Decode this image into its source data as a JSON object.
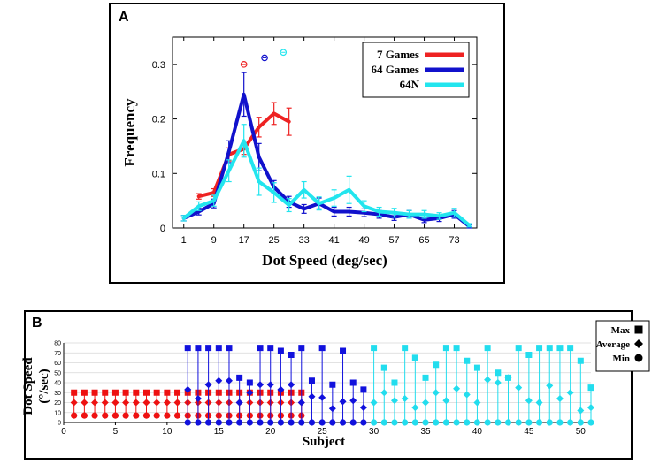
{
  "chart_data": [
    {
      "panel_label": "A",
      "type": "line",
      "title": "",
      "xlabel": "Dot Speed (deg/sec)",
      "ylabel": "Frequency",
      "xlim": [
        -2,
        79
      ],
      "ylim": [
        0,
        0.35
      ],
      "x_ticks": [
        1,
        9,
        17,
        25,
        33,
        41,
        49,
        57,
        65,
        73
      ],
      "y_ticks": [
        0,
        0.1,
        0.2,
        0.3
      ],
      "y_tick_labels": [
        "0",
        "0.1",
        "0.2",
        "0.3"
      ],
      "legend_position": "top-right",
      "series": [
        {
          "name": "7 Games",
          "color": "#ee2222",
          "x": [
            5,
            9,
            13,
            17,
            21,
            25,
            29
          ],
          "y": [
            0.058,
            0.065,
            0.135,
            0.145,
            0.185,
            0.21,
            0.195
          ],
          "err": [
            0.005,
            0.007,
            0.012,
            0.01,
            0.018,
            0.02,
            0.025
          ]
        },
        {
          "name": "64 Games",
          "color": "#1111cc",
          "x": [
            1,
            5,
            9,
            13,
            17,
            21,
            25,
            29,
            33,
            37,
            41,
            45,
            49,
            53,
            57,
            61,
            65,
            69,
            73,
            77
          ],
          "y": [
            0.018,
            0.03,
            0.045,
            0.14,
            0.245,
            0.13,
            0.075,
            0.048,
            0.035,
            0.045,
            0.03,
            0.03,
            0.028,
            0.025,
            0.02,
            0.025,
            0.015,
            0.018,
            0.025,
            0.003
          ],
          "err": [
            0.005,
            0.006,
            0.008,
            0.02,
            0.04,
            0.025,
            0.012,
            0.01,
            0.008,
            0.01,
            0.008,
            0.008,
            0.007,
            0.007,
            0.006,
            0.007,
            0.005,
            0.006,
            0.007,
            0.003
          ]
        },
        {
          "name": "64N",
          "color": "#22e5ee",
          "x": [
            1,
            5,
            9,
            13,
            17,
            21,
            25,
            29,
            33,
            37,
            41,
            45,
            49,
            53,
            57,
            61,
            65,
            69,
            73,
            77
          ],
          "y": [
            0.018,
            0.04,
            0.05,
            0.105,
            0.16,
            0.085,
            0.065,
            0.042,
            0.07,
            0.045,
            0.055,
            0.07,
            0.04,
            0.03,
            0.028,
            0.025,
            0.025,
            0.022,
            0.028,
            0.005
          ],
          "err": [
            0.005,
            0.008,
            0.01,
            0.02,
            0.03,
            0.025,
            0.018,
            0.012,
            0.015,
            0.012,
            0.015,
            0.025,
            0.01,
            0.008,
            0.008,
            0.007,
            0.007,
            0.006,
            0.008,
            0.003
          ]
        }
      ],
      "peak_markers": [
        {
          "series": "7 Games",
          "x": 17,
          "y": 0.3,
          "color": "#ee2222"
        },
        {
          "series": "64 Games",
          "x": 22.5,
          "y": 0.312,
          "color": "#1111cc"
        },
        {
          "series": "64N",
          "x": 27.5,
          "y": 0.322,
          "color": "#22e5ee"
        }
      ]
    },
    {
      "panel_label": "B",
      "type": "scatter",
      "title": "",
      "xlabel": "Subject",
      "ylabel_line1": "Dot Speed",
      "ylabel_line2": "(°/sec)",
      "xlim": [
        0,
        51
      ],
      "ylim": [
        0,
        80
      ],
      "x_ticks": [
        0,
        5,
        10,
        15,
        20,
        25,
        30,
        35,
        40,
        45,
        50
      ],
      "y_ticks": [
        0,
        10,
        20,
        30,
        40,
        50,
        60,
        70,
        80
      ],
      "legend": [
        "Max",
        "Average",
        "Min"
      ],
      "legend_position": "top-right",
      "series": [
        {
          "name": "7 Games",
          "color": "#ee1111",
          "subjects": [
            1,
            2,
            3,
            4,
            5,
            6,
            7,
            8,
            9,
            10,
            11,
            12,
            13,
            14,
            15,
            16,
            17,
            18,
            19,
            20,
            21,
            22,
            23
          ],
          "max": [
            30,
            30,
            30,
            30,
            30,
            30,
            30,
            30,
            30,
            30,
            30,
            30,
            30,
            30,
            30,
            30,
            30,
            30,
            30,
            30,
            30,
            30,
            30
          ],
          "average": [
            20,
            20,
            20,
            20,
            20,
            20,
            20,
            20,
            20,
            20,
            20,
            20,
            20,
            20,
            20,
            20,
            20,
            20,
            20,
            20,
            20,
            20,
            20
          ],
          "min": [
            7,
            7,
            7,
            7,
            7,
            7,
            7,
            7,
            7,
            7,
            7,
            7,
            7,
            7,
            7,
            7,
            7,
            7,
            7,
            7,
            7,
            7,
            7
          ]
        },
        {
          "name": "64 Games",
          "color": "#1111dd",
          "subjects": [
            12,
            13,
            14,
            15,
            16,
            17,
            18,
            19,
            20,
            21,
            22,
            23,
            24,
            25,
            26,
            27,
            28,
            29
          ],
          "max": [
            75,
            75,
            75,
            75,
            75,
            45,
            40,
            75,
            75,
            72,
            68,
            75,
            42,
            75,
            38,
            72,
            40,
            33
          ],
          "average": [
            33,
            24,
            38,
            42,
            42,
            20,
            30,
            38,
            38,
            33,
            38,
            20,
            26,
            25,
            14,
            21,
            22,
            15
          ],
          "min": [
            0,
            0,
            0,
            0,
            0,
            0,
            0,
            0,
            0,
            0,
            0,
            0,
            0,
            0,
            0,
            0,
            0,
            0
          ]
        },
        {
          "name": "64N",
          "color": "#22ddee",
          "subjects": [
            30,
            31,
            32,
            33,
            34,
            35,
            36,
            37,
            38,
            39,
            40,
            41,
            42,
            43,
            44,
            45,
            46,
            47,
            48,
            49,
            50,
            51
          ],
          "max": [
            75,
            55,
            40,
            75,
            65,
            45,
            58,
            75,
            75,
            62,
            55,
            75,
            50,
            45,
            75,
            68,
            75,
            75,
            75,
            75,
            62,
            35
          ],
          "average": [
            20,
            30,
            22,
            24,
            15,
            20,
            30,
            22,
            34,
            28,
            20,
            43,
            40,
            45,
            35,
            22,
            20,
            37,
            24,
            30,
            12,
            15
          ],
          "min": [
            0,
            0,
            0,
            0,
            0,
            0,
            0,
            0,
            0,
            0,
            0,
            0,
            0,
            0,
            0,
            0,
            0,
            0,
            0,
            0,
            0,
            0
          ]
        }
      ]
    }
  ]
}
